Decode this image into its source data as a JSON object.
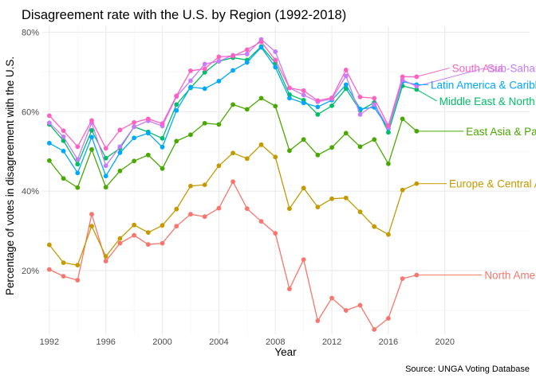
{
  "chart_data": {
    "type": "line",
    "title": "Disagreement rate with the U.S. by Region (1992-2018)",
    "xlabel": "Year",
    "ylabel": "Percentage of votes in disagreement with the U.S.",
    "caption": "Source: UNGA Voting Database",
    "xlim": [
      1991.5,
      2026
    ],
    "ylim": [
      0.04,
      0.815
    ],
    "x_ticks": [
      1992,
      1996,
      2000,
      2004,
      2008,
      2012,
      2016,
      2020
    ],
    "y_ticks": [
      0.2,
      0.4,
      0.6,
      0.8
    ],
    "y_tick_labels": [
      "20%",
      "40%",
      "60%",
      "80%"
    ],
    "grid": true,
    "legend": "direct labels at the right of each line",
    "x": [
      1992,
      1993,
      1994,
      1995,
      1996,
      1997,
      1998,
      1999,
      2000,
      2001,
      2002,
      2003,
      2004,
      2005,
      2006,
      2007,
      2008,
      2009,
      2010,
      2011,
      2012,
      2013,
      2014,
      2015,
      2016,
      2017,
      2018
    ],
    "series": [
      {
        "name": "South Asia",
        "color": "#FF61C3",
        "values": [
          0.59,
          0.552,
          0.512,
          0.578,
          0.508,
          0.554,
          0.573,
          0.582,
          0.57,
          0.64,
          0.703,
          0.708,
          0.738,
          0.74,
          0.756,
          0.776,
          0.73,
          0.66,
          0.653,
          0.628,
          0.635,
          0.705,
          0.637,
          0.634,
          0.565,
          0.688,
          0.688
        ],
        "label_y": 0.71,
        "label_x": 2020.5
      },
      {
        "name": "Sub-Saharan Africa",
        "color": "#C77CFF",
        "values": [
          0.572,
          0.537,
          0.48,
          0.572,
          0.464,
          0.512,
          0.562,
          0.577,
          0.564,
          0.638,
          0.678,
          0.72,
          0.727,
          0.742,
          0.745,
          0.782,
          0.751,
          0.66,
          0.642,
          0.625,
          0.632,
          0.69,
          0.593,
          0.618,
          0.56,
          0.68,
          0.664
        ],
        "label_y": 0.71,
        "label_x": 2023
      },
      {
        "name": "Latin America & Caribbean",
        "color": "#00A9FF",
        "values": [
          0.521,
          0.501,
          0.446,
          0.536,
          0.438,
          0.497,
          0.534,
          0.546,
          0.511,
          0.603,
          0.662,
          0.658,
          0.677,
          0.704,
          0.724,
          0.762,
          0.712,
          0.634,
          0.622,
          0.612,
          0.629,
          0.668,
          0.607,
          0.611,
          0.558,
          0.676,
          0.668
        ],
        "label_y": 0.668,
        "label_x": 2019
      },
      {
        "name": "Middle East & North Africa",
        "color": "#00BE67",
        "values": [
          0.568,
          0.527,
          0.468,
          0.553,
          0.483,
          0.508,
          0.562,
          0.549,
          0.533,
          0.618,
          0.66,
          0.699,
          0.727,
          0.736,
          0.73,
          0.764,
          0.723,
          0.643,
          0.629,
          0.593,
          0.615,
          0.658,
          0.603,
          0.623,
          0.548,
          0.665,
          0.656
        ],
        "label_y": 0.627,
        "label_x": 2019.6
      },
      {
        "name": "East Asia & Pacific",
        "color": "#49A900",
        "values": [
          0.477,
          0.432,
          0.409,
          0.505,
          0.41,
          0.451,
          0.476,
          0.491,
          0.457,
          0.526,
          0.542,
          0.571,
          0.568,
          0.618,
          0.606,
          0.634,
          0.614,
          0.502,
          0.53,
          0.491,
          0.51,
          0.546,
          0.512,
          0.53,
          0.469,
          0.582,
          0.551
        ],
        "label_y": 0.551,
        "label_x": 2021.5
      },
      {
        "name": "Europe & Central Asia",
        "color": "#C49A00",
        "values": [
          0.265,
          0.22,
          0.214,
          0.312,
          0.236,
          0.281,
          0.315,
          0.296,
          0.314,
          0.355,
          0.413,
          0.416,
          0.464,
          0.496,
          0.482,
          0.517,
          0.486,
          0.356,
          0.408,
          0.36,
          0.381,
          0.383,
          0.348,
          0.311,
          0.291,
          0.403,
          0.419
        ],
        "label_y": 0.419,
        "label_x": 2020.3
      },
      {
        "name": "North America",
        "color": "#F8766D",
        "values": [
          0.203,
          0.186,
          0.176,
          0.342,
          0.224,
          0.269,
          0.289,
          0.266,
          0.269,
          0.312,
          0.342,
          0.336,
          0.357,
          0.424,
          0.356,
          0.324,
          0.294,
          0.154,
          0.228,
          0.074,
          0.131,
          0.1,
          0.113,
          0.052,
          0.08,
          0.18,
          0.189
        ],
        "label_y": 0.189,
        "label_x": 2022.8
      }
    ]
  }
}
